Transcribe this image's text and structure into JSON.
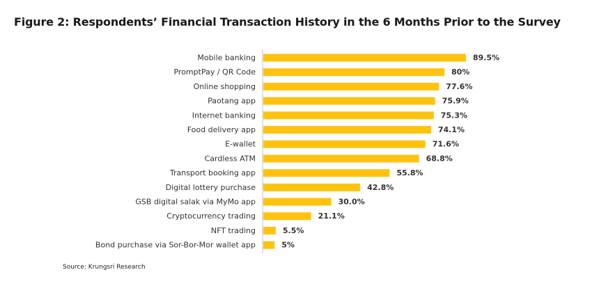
{
  "title": "Figure 2: Respondents’ Financial Transaction History in the 6 Months Prior to the Survey",
  "source": "Source: Krungsri Research",
  "chart_data": {
    "type": "bar",
    "orientation": "horizontal",
    "categories": [
      "Mobile banking",
      "PromptPay / QR Code",
      "Online shopping",
      "Paotang app",
      "Internet banking",
      "Food delivery app",
      "E-wallet",
      "Cardless ATM",
      "Transport booking app",
      "Digital lottery purchase",
      "GSB digital salak via MyMo app",
      "Cryptocurrency trading",
      "NFT trading",
      "Bond purchase via Sor-Bor-Mor wallet app"
    ],
    "values": [
      89.5,
      80,
      77.6,
      75.9,
      75.3,
      74.1,
      71.6,
      68.8,
      55.8,
      42.8,
      30.0,
      21.1,
      5.5,
      5
    ],
    "value_labels": [
      "89.5%",
      "80%",
      "77.6%",
      "75.9%",
      "75.3%",
      "74.1%",
      "71.6%",
      "68.8%",
      "55.8%",
      "42.8%",
      "30.0%",
      "21.1%",
      "5.5%",
      "5%"
    ],
    "xlim": [
      0,
      100
    ],
    "grid": false,
    "bar_color": "#FFC20E",
    "axis_color": "#bfbfbf"
  }
}
